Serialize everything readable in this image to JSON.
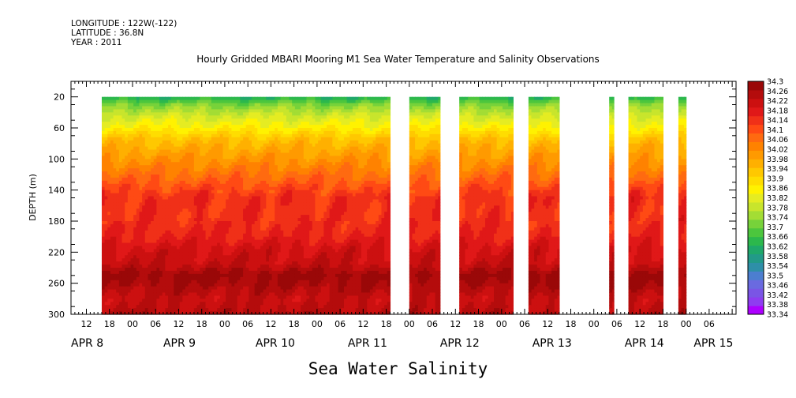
{
  "header": {
    "longitude": "LONGITUDE : 122W(-122)",
    "latitude": "LATITUDE : 36.8N",
    "year": "YEAR : 2011"
  },
  "chart_data": {
    "type": "heatmap",
    "title": "Hourly Gridded MBARI Mooring M1 Sea Water Temperature and Salinity Observations",
    "variable_label": "Sea Water Salinity",
    "ylabel": "DEPTH (m)",
    "xlabel": "",
    "x_unit": "hours since 2011-04-08 00:00",
    "xlim": [
      8,
      181
    ],
    "ylim": [
      300,
      0
    ],
    "y_ticks": [
      "20",
      "60",
      "100",
      "140",
      "180",
      "220",
      "260",
      "300"
    ],
    "x_hour_ticks": [
      {
        "t": 12,
        "label": "12"
      },
      {
        "t": 18,
        "label": "18"
      },
      {
        "t": 24,
        "label": "00"
      },
      {
        "t": 30,
        "label": "06"
      },
      {
        "t": 36,
        "label": "12"
      },
      {
        "t": 42,
        "label": "18"
      },
      {
        "t": 48,
        "label": "00"
      },
      {
        "t": 54,
        "label": "06"
      },
      {
        "t": 60,
        "label": "12"
      },
      {
        "t": 66,
        "label": "18"
      },
      {
        "t": 72,
        "label": "00"
      },
      {
        "t": 78,
        "label": "06"
      },
      {
        "t": 84,
        "label": "12"
      },
      {
        "t": 90,
        "label": "18"
      },
      {
        "t": 96,
        "label": "00"
      },
      {
        "t": 102,
        "label": "06"
      },
      {
        "t": 108,
        "label": "12"
      },
      {
        "t": 114,
        "label": "18"
      },
      {
        "t": 120,
        "label": "00"
      },
      {
        "t": 126,
        "label": "06"
      },
      {
        "t": 132,
        "label": "12"
      },
      {
        "t": 138,
        "label": "18"
      },
      {
        "t": 144,
        "label": "00"
      },
      {
        "t": 150,
        "label": "06"
      },
      {
        "t": 156,
        "label": "12"
      },
      {
        "t": 162,
        "label": "18"
      },
      {
        "t": 168,
        "label": "00"
      },
      {
        "t": 174,
        "label": "06"
      }
    ],
    "date_labels": [
      {
        "t": 8,
        "label": "APR 8"
      },
      {
        "t": 32,
        "label": "APR 9"
      },
      {
        "t": 56,
        "label": "APR 10"
      },
      {
        "t": 80,
        "label": "APR 11"
      },
      {
        "t": 104,
        "label": "APR 12"
      },
      {
        "t": 128,
        "label": "APR 13"
      },
      {
        "t": 152,
        "label": "APR 14"
      },
      {
        "t": 170,
        "label": "APR 15"
      }
    ],
    "data_segments": [
      [
        16,
        91
      ],
      [
        96,
        104
      ],
      [
        109,
        123
      ],
      [
        127,
        135
      ],
      [
        148,
        149.2
      ],
      [
        153,
        162
      ],
      [
        166,
        168
      ]
    ],
    "depth_profile": [
      {
        "depth": 20,
        "value": 33.62
      },
      {
        "depth": 30,
        "value": 33.72
      },
      {
        "depth": 45,
        "value": 33.8
      },
      {
        "depth": 60,
        "value": 33.86
      },
      {
        "depth": 75,
        "value": 33.94
      },
      {
        "depth": 90,
        "value": 33.98
      },
      {
        "depth": 105,
        "value": 34.02
      },
      {
        "depth": 120,
        "value": 34.06
      },
      {
        "depth": 135,
        "value": 34.1
      },
      {
        "depth": 150,
        "value": 34.14
      },
      {
        "depth": 175,
        "value": 34.14
      },
      {
        "depth": 200,
        "value": 34.16
      },
      {
        "depth": 215,
        "value": 34.2
      },
      {
        "depth": 235,
        "value": 34.22
      },
      {
        "depth": 250,
        "value": 34.28
      },
      {
        "depth": 262,
        "value": 34.26
      },
      {
        "depth": 280,
        "value": 34.22
      },
      {
        "depth": 300,
        "value": 34.24
      }
    ],
    "colorbar": {
      "labels": [
        "34.3",
        "34.26",
        "34.22",
        "34.18",
        "34.14",
        "34.1",
        "34.06",
        "34.02",
        "33.98",
        "33.94",
        "33.9",
        "33.86",
        "33.82",
        "33.78",
        "33.74",
        "33.7",
        "33.66",
        "33.62",
        "33.58",
        "33.54",
        "33.5",
        "33.46",
        "33.42",
        "33.38",
        "33.34"
      ],
      "min": 33.34,
      "max": 34.3,
      "colors": [
        "#ad00ff",
        "#8e3df0",
        "#7a55e5",
        "#6a6ae0",
        "#4c7ed0",
        "#2e8fa8",
        "#229a88",
        "#1fa86a",
        "#2cb84c",
        "#4cc63d",
        "#77d23a",
        "#a3dd34",
        "#c8e52c",
        "#e5ec22",
        "#fff200",
        "#ffdd00",
        "#ffc800",
        "#ffb000",
        "#ff9a00",
        "#ff8200",
        "#ff6a10",
        "#ff4a14",
        "#f03018",
        "#e01818",
        "#cc1010",
        "#b40c0c",
        "#9a0808"
      ]
    }
  }
}
